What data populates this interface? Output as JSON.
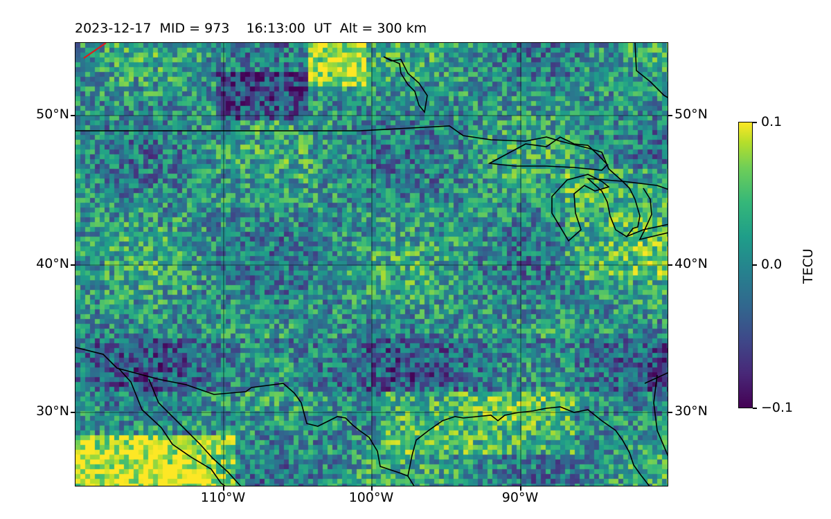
{
  "header": {
    "date": "2023-12-17",
    "mid": "MID = 973",
    "time": "16:13:00",
    "ut": "UT",
    "alt": "Alt = 300 km"
  },
  "map": {
    "lat_labels": [
      "50°N",
      "40°N",
      "30°N"
    ],
    "lon_labels": [
      "110°W",
      "100°W",
      "90°W"
    ],
    "lon_range": [
      -120,
      -80
    ],
    "lat_range": [
      25,
      55
    ],
    "colormap": "viridis",
    "colors": {
      "low": "#440154",
      "mid": "#21918c",
      "high": "#fde725",
      "coastline": "#000000",
      "track": "#e31a1c"
    }
  },
  "colorbar": {
    "label": "TECU",
    "max": "0.1",
    "mid": "0.0",
    "min": "−0.1"
  }
}
